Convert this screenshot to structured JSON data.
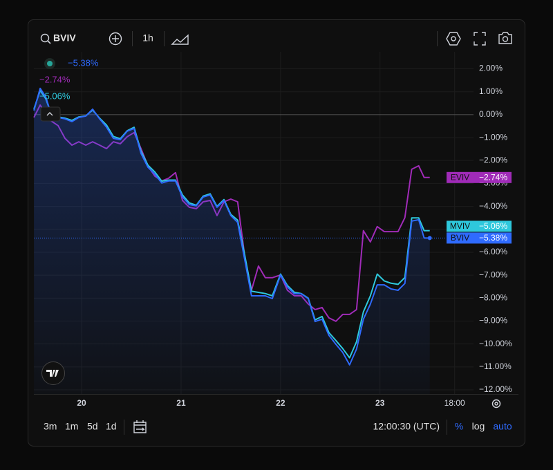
{
  "toolbar": {
    "symbol": "BVIV",
    "interval": "1h",
    "ranges": [
      "3m",
      "1m",
      "5d",
      "1d"
    ],
    "time": "12:00:30 (UTC)",
    "scale_modes": [
      "%",
      "log",
      "auto"
    ]
  },
  "chart_data": {
    "type": "line",
    "log": false,
    "grid": true,
    "legend": "top-left",
    "x": [
      19.521,
      19.583,
      19.639,
      19.694,
      19.764,
      19.833,
      19.903,
      19.972,
      20.042,
      20.111,
      20.181,
      20.25,
      20.319,
      20.389,
      20.458,
      20.528,
      20.597,
      20.667,
      20.736,
      20.806,
      20.875,
      20.944,
      21.014,
      21.083,
      21.153,
      21.222,
      21.292,
      21.361,
      21.431,
      21.5,
      21.569,
      21.639,
      21.708,
      21.778,
      21.847,
      21.917,
      22.0,
      22.069,
      22.139,
      22.208,
      22.278,
      22.347,
      22.417,
      22.486,
      22.556,
      22.625,
      22.694,
      22.764,
      22.833,
      22.903,
      22.972,
      23.042,
      23.111,
      23.181,
      23.25,
      23.319,
      23.389,
      23.444,
      23.5
    ],
    "xlim": [
      19.52,
      23.94
    ],
    "xticks": [
      20,
      21,
      22,
      23,
      {
        "value": 23.75,
        "label": "18:00"
      }
    ],
    "ylim": [
      -12.18,
      2.74
    ],
    "yticks": [
      {
        "value": 2,
        "label": "2.00%"
      },
      {
        "value": 1,
        "label": "1.00%"
      },
      {
        "value": 0,
        "label": "0.00%"
      },
      {
        "value": -1,
        "label": "−1.00%"
      },
      {
        "value": -2,
        "label": "−2.00%"
      },
      {
        "value": -3,
        "label": "−3.00%"
      },
      {
        "value": -4,
        "label": "−4.00%"
      },
      {
        "value": -5,
        "label": "−5.00%"
      },
      {
        "value": -6,
        "label": "−6.00%"
      },
      {
        "value": -7,
        "label": "−7.00%"
      },
      {
        "value": -8,
        "label": "−8.00%"
      },
      {
        "value": -9,
        "label": "−9.00%"
      },
      {
        "value": -10,
        "label": "−10.00%"
      },
      {
        "value": -11,
        "label": "−11.00%"
      },
      {
        "value": -12,
        "label": "−12.00%"
      }
    ],
    "series": [
      {
        "name": "EVIV",
        "color": "#a02bb8",
        "last_label": "−2.74%",
        "values": [
          -0.12,
          0.42,
          0.03,
          -0.27,
          -0.48,
          -1.03,
          -1.33,
          -1.18,
          -1.33,
          -1.18,
          -1.33,
          -1.48,
          -1.18,
          -1.27,
          -0.96,
          -0.78,
          -1.48,
          -2.23,
          -2.68,
          -2.89,
          -2.77,
          -2.53,
          -3.74,
          -4.04,
          -4.1,
          -3.8,
          -3.74,
          -4.4,
          -3.8,
          -3.68,
          -3.8,
          -6.15,
          -7.66,
          -6.6,
          -7.11,
          -7.11,
          -6.99,
          -7.66,
          -7.9,
          -7.9,
          -8.26,
          -8.5,
          -8.41,
          -8.86,
          -9.01,
          -8.71,
          -8.71,
          -8.5,
          -5.06,
          -5.55,
          -4.88,
          -5.1,
          -5.1,
          -5.1,
          -4.49,
          -2.38,
          -2.23,
          -2.74,
          -2.74
        ]
      },
      {
        "name": "MVIV",
        "color": "#2ec8dc",
        "last_label": "−5.06%",
        "values": [
          0.25,
          1.05,
          0.7,
          0.05,
          -0.1,
          -0.15,
          -0.25,
          -0.1,
          -0.05,
          0.2,
          -0.15,
          -0.45,
          -0.95,
          -1.05,
          -0.7,
          -0.55,
          -1.6,
          -2.2,
          -2.5,
          -2.9,
          -2.85,
          -2.85,
          -3.5,
          -3.85,
          -3.95,
          -3.55,
          -3.45,
          -4.0,
          -3.7,
          -4.35,
          -4.6,
          -6.1,
          -7.7,
          -7.75,
          -7.8,
          -7.9,
          -6.95,
          -7.45,
          -7.75,
          -7.8,
          -8.0,
          -8.95,
          -8.8,
          -9.5,
          -9.85,
          -10.2,
          -10.6,
          -9.9,
          -8.6,
          -7.9,
          -6.95,
          -7.25,
          -7.35,
          -7.4,
          -7.1,
          -4.5,
          -4.5,
          -5.06,
          -5.06
        ]
      },
      {
        "name": "BVIV",
        "color": "#2f6bff",
        "last_label": "−5.38%",
        "values": [
          0.18,
          1.15,
          0.78,
          0.03,
          -0.12,
          -0.18,
          -0.3,
          -0.12,
          -0.06,
          0.24,
          -0.18,
          -0.54,
          -1.03,
          -1.09,
          -0.72,
          -0.6,
          -1.69,
          -2.29,
          -2.59,
          -2.98,
          -2.89,
          -2.89,
          -3.59,
          -3.92,
          -3.98,
          -3.59,
          -3.5,
          -4.04,
          -3.74,
          -4.4,
          -4.7,
          -6.3,
          -7.9,
          -7.9,
          -7.9,
          -8.02,
          -6.99,
          -7.51,
          -7.81,
          -7.81,
          -8.02,
          -9.02,
          -8.92,
          -9.62,
          -10.01,
          -10.37,
          -10.91,
          -10.22,
          -8.92,
          -8.26,
          -7.42,
          -7.42,
          -7.6,
          -7.66,
          -7.36,
          -4.64,
          -4.58,
          -5.38,
          -5.38
        ]
      }
    ]
  }
}
